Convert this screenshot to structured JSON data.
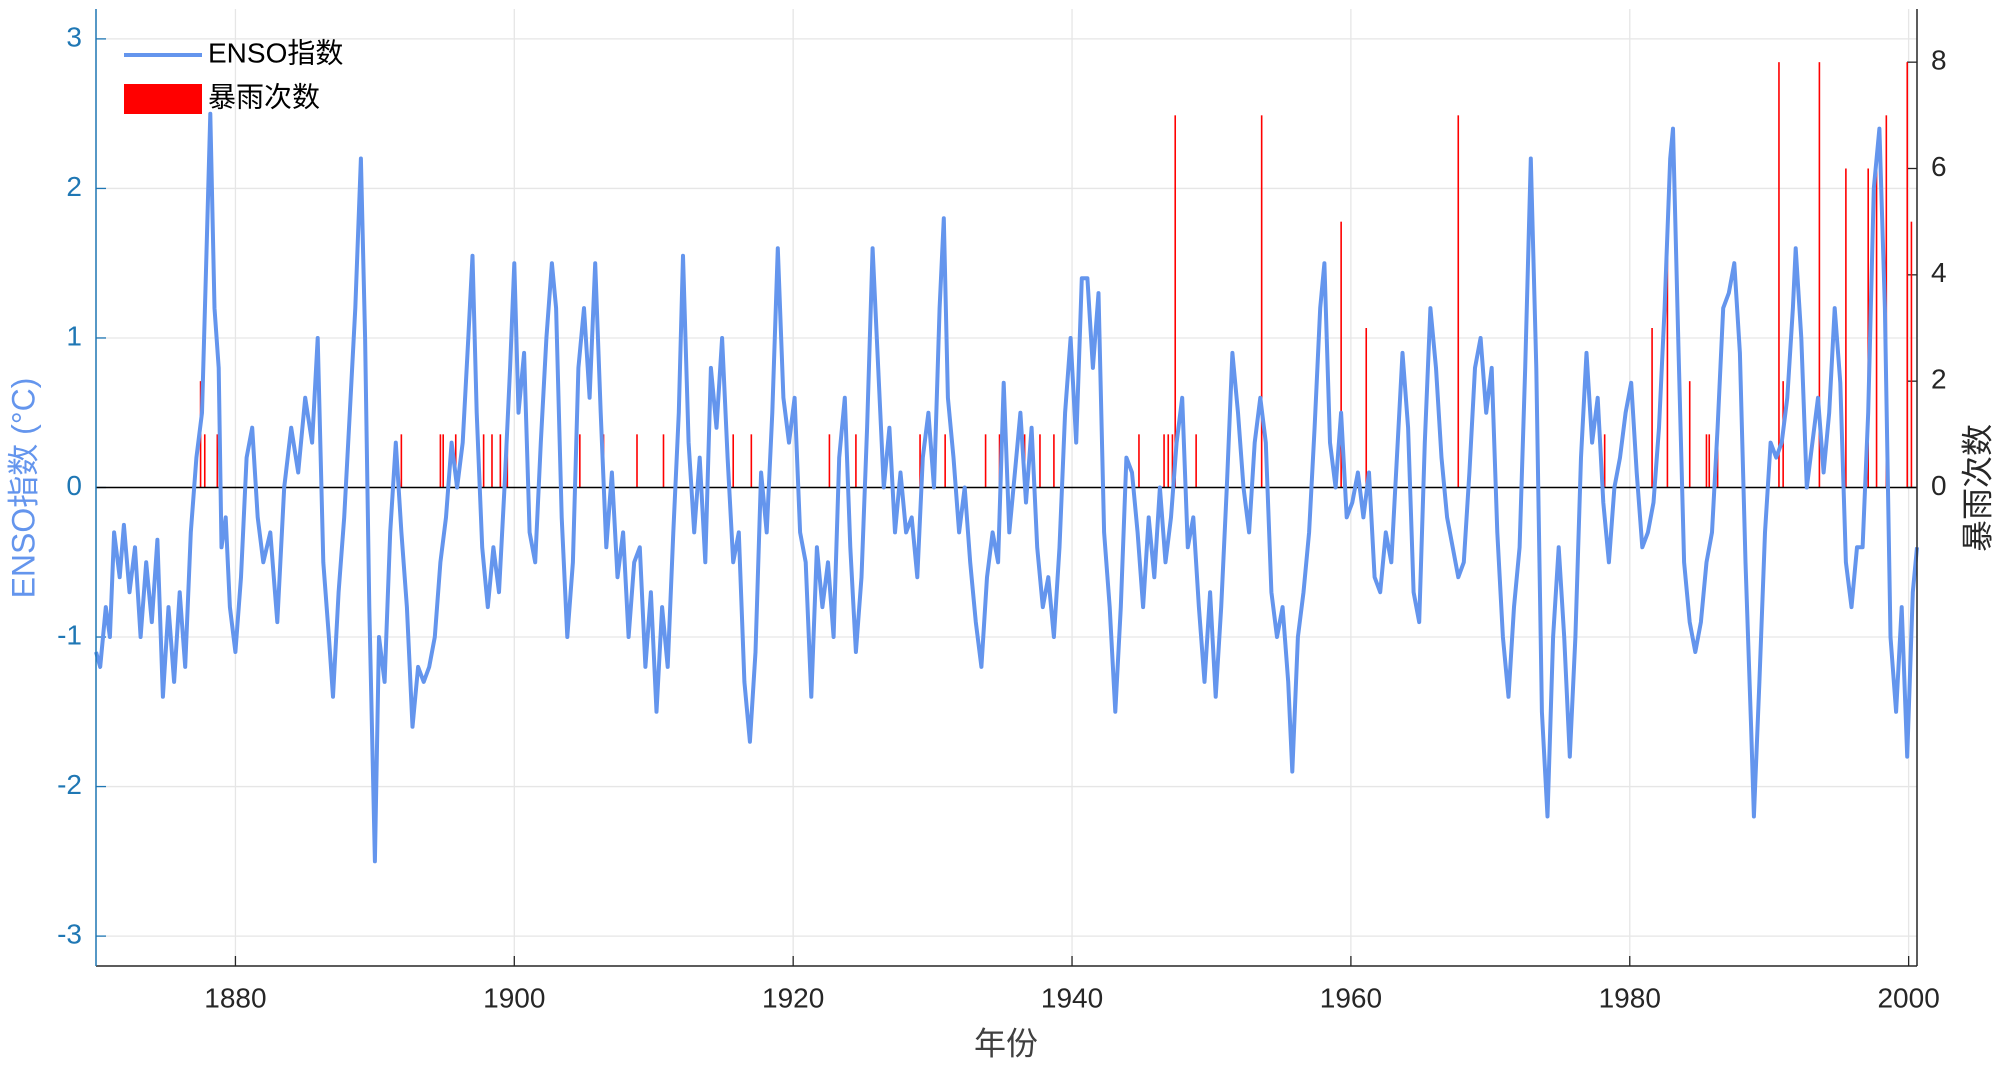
{
  "chart_data": {
    "type": "line",
    "xlabel": "年份",
    "ylabel": "ENSO指数 (°C)",
    "y2label": "暴雨次数",
    "xlim": [
      1870,
      2000.6
    ],
    "xticks": [
      1880,
      1900,
      1920,
      1940,
      1960,
      1980,
      2000
    ],
    "ylim": [
      -3.2,
      3.2
    ],
    "yticks": [
      -3,
      -2,
      -1,
      0,
      1,
      2,
      3
    ],
    "y2lim": [
      -9,
      9
    ],
    "y2ticks": [
      0,
      2,
      4,
      6,
      8
    ],
    "grid": true,
    "legend": "upper left",
    "series": [
      {
        "name": "ENSO指数",
        "type": "line",
        "color": "#6495ed",
        "x": [
          1870.0,
          1870.3,
          1870.7,
          1871.0,
          1871.3,
          1871.7,
          1872.0,
          1872.4,
          1872.8,
          1873.2,
          1873.6,
          1874.0,
          1874.4,
          1874.8,
          1875.2,
          1875.6,
          1876.0,
          1876.4,
          1876.8,
          1877.2,
          1877.6,
          1877.9,
          1878.2,
          1878.5,
          1878.8,
          1879.0,
          1879.3,
          1879.6,
          1880.0,
          1880.4,
          1880.8,
          1881.2,
          1881.6,
          1882.0,
          1882.5,
          1883.0,
          1883.5,
          1884.0,
          1884.5,
          1885.0,
          1885.5,
          1885.9,
          1886.3,
          1886.7,
          1887.0,
          1887.4,
          1887.8,
          1888.2,
          1888.6,
          1889.0,
          1889.3,
          1889.6,
          1890.0,
          1890.3,
          1890.7,
          1891.1,
          1891.5,
          1891.9,
          1892.3,
          1892.7,
          1893.1,
          1893.5,
          1893.9,
          1894.3,
          1894.7,
          1895.1,
          1895.5,
          1895.9,
          1896.3,
          1896.7,
          1897.0,
          1897.3,
          1897.7,
          1898.1,
          1898.5,
          1898.9,
          1899.3,
          1899.7,
          1900.0,
          1900.3,
          1900.7,
          1901.1,
          1901.5,
          1901.9,
          1902.3,
          1902.7,
          1903.0,
          1903.4,
          1903.8,
          1904.2,
          1904.6,
          1905.0,
          1905.4,
          1905.8,
          1906.2,
          1906.6,
          1907.0,
          1907.4,
          1907.8,
          1908.2,
          1908.6,
          1909.0,
          1909.4,
          1909.8,
          1910.2,
          1910.6,
          1911.0,
          1911.4,
          1911.8,
          1912.1,
          1912.5,
          1912.9,
          1913.3,
          1913.7,
          1914.1,
          1914.5,
          1914.9,
          1915.3,
          1915.7,
          1916.1,
          1916.5,
          1916.9,
          1917.3,
          1917.7,
          1918.1,
          1918.5,
          1918.9,
          1919.3,
          1919.7,
          1920.1,
          1920.5,
          1920.9,
          1921.3,
          1921.7,
          1922.1,
          1922.5,
          1922.9,
          1923.3,
          1923.7,
          1924.1,
          1924.5,
          1924.9,
          1925.3,
          1925.7,
          1926.1,
          1926.5,
          1926.9,
          1927.3,
          1927.7,
          1928.1,
          1928.5,
          1928.9,
          1929.3,
          1929.7,
          1930.1,
          1930.5,
          1930.8,
          1931.1,
          1931.5,
          1931.9,
          1932.3,
          1932.7,
          1933.1,
          1933.5,
          1933.9,
          1934.3,
          1934.7,
          1935.1,
          1935.5,
          1935.9,
          1936.3,
          1936.7,
          1937.1,
          1937.5,
          1937.9,
          1938.3,
          1938.7,
          1939.1,
          1939.5,
          1939.9,
          1940.3,
          1940.7,
          1941.1,
          1941.5,
          1941.9,
          1942.3,
          1942.7,
          1943.1,
          1943.5,
          1943.9,
          1944.3,
          1944.7,
          1945.1,
          1945.5,
          1945.9,
          1946.3,
          1946.7,
          1947.1,
          1947.5,
          1947.9,
          1948.3,
          1948.7,
          1949.1,
          1949.5,
          1949.9,
          1950.3,
          1950.7,
          1951.1,
          1951.5,
          1951.9,
          1952.3,
          1952.7,
          1953.1,
          1953.5,
          1953.9,
          1954.3,
          1954.7,
          1955.1,
          1955.5,
          1955.8,
          1956.2,
          1956.6,
          1957.0,
          1957.4,
          1957.8,
          1958.1,
          1958.5,
          1958.9,
          1959.3,
          1959.7,
          1960.1,
          1960.5,
          1960.9,
          1961.3,
          1961.7,
          1962.1,
          1962.5,
          1962.9,
          1963.3,
          1963.7,
          1964.1,
          1964.5,
          1964.9,
          1965.3,
          1965.7,
          1966.1,
          1966.5,
          1966.9,
          1967.3,
          1967.7,
          1968.1,
          1968.5,
          1968.9,
          1969.3,
          1969.7,
          1970.1,
          1970.5,
          1970.9,
          1971.3,
          1971.7,
          1972.1,
          1972.5,
          1972.9,
          1973.3,
          1973.7,
          1974.1,
          1974.5,
          1974.9,
          1975.3,
          1975.7,
          1976.1,
          1976.5,
          1976.9,
          1977.3,
          1977.7,
          1978.1,
          1978.5,
          1978.9,
          1979.3,
          1979.7,
          1980.1,
          1980.5,
          1980.9,
          1981.3,
          1981.7,
          1982.1,
          1982.5,
          1982.9,
          1983.1,
          1983.5,
          1983.9,
          1984.3,
          1984.7,
          1985.1,
          1985.5,
          1985.9,
          1986.3,
          1986.7,
          1987.1,
          1987.5,
          1987.9,
          1988.3,
          1988.7,
          1988.9,
          1989.3,
          1989.7,
          1990.1,
          1990.5,
          1990.9,
          1991.3,
          1991.7,
          1991.9,
          1992.3,
          1992.7,
          1993.1,
          1993.5,
          1993.9,
          1994.3,
          1994.7,
          1995.1,
          1995.5,
          1995.9,
          1996.3,
          1996.7,
          1997.1,
          1997.5,
          1997.9,
          1998.3,
          1998.7,
          1999.1,
          1999.5,
          1999.9,
          2000.3,
          2000.6
        ],
        "values": [
          -1.1,
          -1.2,
          -0.8,
          -1.0,
          -0.3,
          -0.6,
          -0.25,
          -0.7,
          -0.4,
          -1.0,
          -0.5,
          -0.9,
          -0.35,
          -1.4,
          -0.8,
          -1.3,
          -0.7,
          -1.2,
          -0.3,
          0.2,
          0.5,
          1.5,
          2.5,
          1.2,
          0.8,
          -0.4,
          -0.2,
          -0.8,
          -1.1,
          -0.6,
          0.2,
          0.4,
          -0.2,
          -0.5,
          -0.3,
          -0.9,
          0.0,
          0.4,
          0.1,
          0.6,
          0.3,
          1.0,
          -0.5,
          -1.0,
          -1.4,
          -0.7,
          -0.2,
          0.5,
          1.2,
          2.2,
          1.0,
          -0.8,
          -2.5,
          -1.0,
          -1.3,
          -0.3,
          0.3,
          -0.3,
          -0.8,
          -1.6,
          -1.2,
          -1.3,
          -1.2,
          -1.0,
          -0.5,
          -0.2,
          0.3,
          0.0,
          0.3,
          1.0,
          1.55,
          0.5,
          -0.4,
          -0.8,
          -0.4,
          -0.7,
          0.0,
          0.8,
          1.5,
          0.5,
          0.9,
          -0.3,
          -0.5,
          0.3,
          1.0,
          1.5,
          1.2,
          -0.2,
          -1.0,
          -0.5,
          0.8,
          1.2,
          0.6,
          1.5,
          0.5,
          -0.4,
          0.1,
          -0.6,
          -0.3,
          -1.0,
          -0.5,
          -0.4,
          -1.2,
          -0.7,
          -1.5,
          -0.8,
          -1.2,
          -0.3,
          0.5,
          1.55,
          0.3,
          -0.3,
          0.2,
          -0.5,
          0.8,
          0.4,
          1.0,
          0.2,
          -0.5,
          -0.3,
          -1.3,
          -1.7,
          -1.1,
          0.1,
          -0.3,
          0.5,
          1.6,
          0.6,
          0.3,
          0.6,
          -0.3,
          -0.5,
          -1.4,
          -0.4,
          -0.8,
          -0.5,
          -1.0,
          0.2,
          0.6,
          -0.4,
          -1.1,
          -0.6,
          0.4,
          1.6,
          0.8,
          0.0,
          0.4,
          -0.3,
          0.1,
          -0.3,
          -0.2,
          -0.6,
          0.2,
          0.5,
          0.0,
          1.2,
          1.8,
          0.6,
          0.2,
          -0.3,
          0.0,
          -0.5,
          -0.9,
          -1.2,
          -0.6,
          -0.3,
          -0.5,
          0.7,
          -0.3,
          0.1,
          0.5,
          -0.1,
          0.4,
          -0.4,
          -0.8,
          -0.6,
          -1.0,
          -0.4,
          0.5,
          1.0,
          0.3,
          1.4,
          1.4,
          0.8,
          1.3,
          -0.3,
          -0.8,
          -1.5,
          -0.8,
          0.2,
          0.1,
          -0.3,
          -0.8,
          -0.2,
          -0.6,
          0.0,
          -0.5,
          -0.2,
          0.3,
          0.6,
          -0.4,
          -0.2,
          -0.8,
          -1.3,
          -0.7,
          -1.4,
          -0.8,
          0.0,
          0.9,
          0.5,
          0.0,
          -0.3,
          0.3,
          0.6,
          0.3,
          -0.7,
          -1.0,
          -0.8,
          -1.3,
          -1.9,
          -1.0,
          -0.7,
          -0.3,
          0.4,
          1.2,
          1.5,
          0.3,
          0.0,
          0.5,
          -0.2,
          -0.1,
          0.1,
          -0.2,
          0.1,
          -0.6,
          -0.7,
          -0.3,
          -0.5,
          0.2,
          0.9,
          0.4,
          -0.7,
          -0.9,
          0.3,
          1.2,
          0.8,
          0.2,
          -0.2,
          -0.4,
          -0.6,
          -0.5,
          0.1,
          0.8,
          1.0,
          0.5,
          0.8,
          -0.3,
          -1.0,
          -1.4,
          -0.8,
          -0.4,
          0.8,
          2.2,
          0.8,
          -1.5,
          -2.2,
          -1.0,
          -0.4,
          -1.0,
          -1.8,
          -1.0,
          0.2,
          0.9,
          0.3,
          0.6,
          -0.1,
          -0.5,
          0.0,
          0.2,
          0.5,
          0.7,
          0.1,
          -0.4,
          -0.3,
          -0.1,
          0.4,
          1.2,
          2.2,
          2.4,
          0.9,
          -0.5,
          -0.9,
          -1.1,
          -0.9,
          -0.5,
          -0.3,
          0.4,
          1.2,
          1.3,
          1.5,
          0.9,
          -0.5,
          -1.6,
          -2.2,
          -1.3,
          -0.3,
          0.3,
          0.2,
          0.3,
          0.6,
          1.2,
          1.6,
          1.0,
          0.0,
          0.3,
          0.6,
          0.1,
          0.5,
          1.2,
          0.7,
          -0.5,
          -0.8,
          -0.4,
          -0.4,
          0.5,
          2.0,
          2.4,
          1.2,
          -1.0,
          -1.5,
          -0.8,
          -1.8,
          -0.7,
          -0.4
        ]
      },
      {
        "name": "暴雨次数",
        "type": "bar",
        "axis": "y2",
        "color": "#ff0000",
        "x": [
          1877.5,
          1877.8,
          1878.7,
          1889.4,
          1891.9,
          1894.7,
          1894.9,
          1895.8,
          1897.8,
          1898.4,
          1899.0,
          1899.5,
          1904.7,
          1906.4,
          1908.8,
          1910.7,
          1915.7,
          1917.0,
          1922.6,
          1924.5,
          1929.1,
          1930.9,
          1933.8,
          1934.8,
          1936.6,
          1937.7,
          1938.7,
          1944.8,
          1946.6,
          1946.9,
          1947.2,
          1947.4,
          1948.9,
          1953.6,
          1959.3,
          1961.1,
          1967.7,
          1978.2,
          1981.6,
          1982.7,
          1984.3,
          1985.5,
          1985.7,
          1986.3,
          1990.7,
          1991.0,
          1993.6,
          1995.5,
          1997.1,
          1997.7,
          1998.4,
          1999.9,
          2000.2
        ],
        "values": [
          2,
          1,
          1,
          1,
          1,
          1,
          1,
          1,
          1,
          1,
          1,
          1,
          1,
          1,
          1,
          1,
          1,
          1,
          1,
          1,
          1,
          1,
          1,
          1,
          1,
          1,
          1,
          1,
          1,
          1,
          1,
          7,
          1,
          7,
          5,
          3,
          7,
          1,
          3,
          5,
          2,
          1,
          1,
          1,
          8,
          2,
          8,
          6,
          6,
          6,
          7,
          8,
          5
        ]
      }
    ]
  }
}
